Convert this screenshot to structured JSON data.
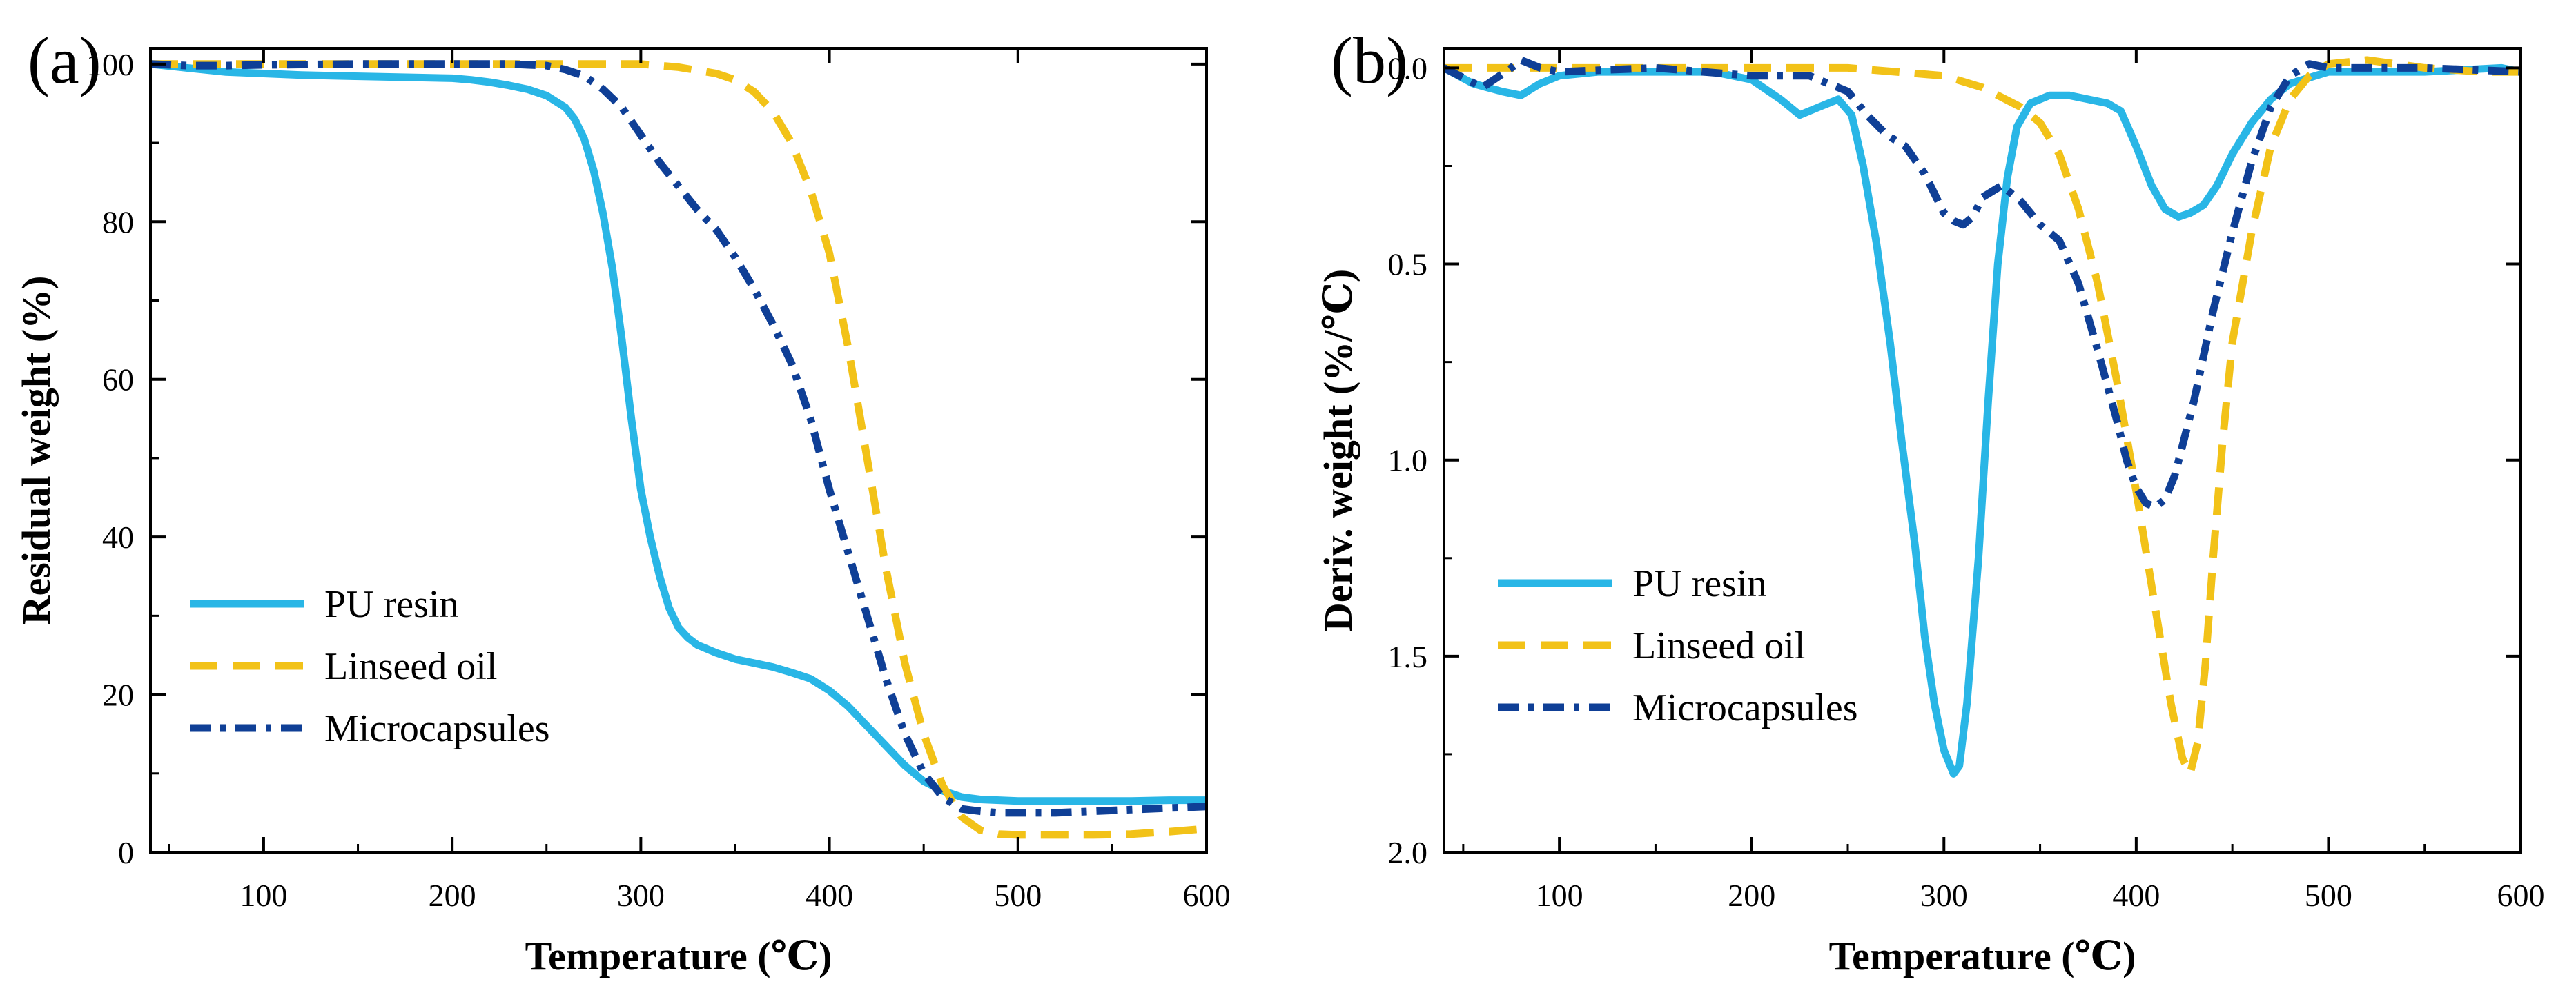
{
  "chart_data": [
    {
      "panel_label": "(a)",
      "type": "line",
      "title": "",
      "xlabel": "Temperature (℃)",
      "ylabel": "Residual weight (%)",
      "xlim": [
        40,
        600
      ],
      "ylim": [
        0,
        102
      ],
      "xticks": [
        100,
        200,
        300,
        400,
        500,
        600
      ],
      "yticks": [
        0,
        20,
        40,
        60,
        80,
        100
      ],
      "ytick_labels": [
        "0",
        "20",
        "40",
        "60",
        "80",
        "100"
      ],
      "legend_position": "bottom-left",
      "series": [
        {
          "name": "PU resin",
          "color": "#29b6e6",
          "dash": "solid",
          "x": [
            40,
            60,
            80,
            100,
            120,
            140,
            160,
            180,
            200,
            210,
            220,
            230,
            240,
            250,
            260,
            265,
            270,
            275,
            280,
            285,
            290,
            295,
            300,
            305,
            310,
            315,
            320,
            325,
            330,
            340,
            350,
            360,
            370,
            380,
            390,
            400,
            410,
            420,
            430,
            440,
            450,
            460,
            470,
            480,
            500,
            520,
            540,
            560,
            580,
            600
          ],
          "y": [
            100,
            99.5,
            99.0,
            98.8,
            98.6,
            98.5,
            98.4,
            98.3,
            98.2,
            98.0,
            97.7,
            97.3,
            96.8,
            96.0,
            94.5,
            93.0,
            90.5,
            86.5,
            81.0,
            74.0,
            65.0,
            55.0,
            46.0,
            40.0,
            35.0,
            31.0,
            28.5,
            27.2,
            26.3,
            25.3,
            24.5,
            24.0,
            23.5,
            22.8,
            22.0,
            20.5,
            18.5,
            16.0,
            13.5,
            11.0,
            9.0,
            7.8,
            7.0,
            6.7,
            6.5,
            6.5,
            6.5,
            6.5,
            6.6,
            6.6
          ]
        },
        {
          "name": "Linseed oil",
          "color": "#f2c218",
          "dash": "dashed",
          "x": [
            40,
            100,
            200,
            250,
            280,
            300,
            320,
            340,
            350,
            360,
            370,
            380,
            390,
            400,
            410,
            420,
            430,
            440,
            450,
            460,
            470,
            480,
            490,
            500,
            520,
            540,
            560,
            580,
            600
          ],
          "y": [
            100,
            100,
            100,
            100,
            100,
            100,
            99.6,
            98.8,
            98.0,
            96.5,
            94.0,
            90.0,
            84.0,
            76.0,
            64.0,
            50.0,
            36.0,
            24.0,
            15.0,
            8.5,
            4.5,
            2.8,
            2.3,
            2.2,
            2.2,
            2.2,
            2.3,
            2.6,
            3.0
          ]
        },
        {
          "name": "Microcapsules",
          "color": "#0f3f96",
          "dash": "dashdot",
          "x": [
            40,
            60,
            80,
            100,
            150,
            200,
            230,
            250,
            260,
            270,
            280,
            290,
            300,
            310,
            320,
            330,
            340,
            350,
            360,
            370,
            380,
            390,
            400,
            410,
            420,
            430,
            440,
            450,
            460,
            470,
            480,
            490,
            500,
            520,
            540,
            560,
            580,
            600
          ],
          "y": [
            100,
            99.8,
            99.8,
            99.9,
            100,
            100,
            100,
            99.8,
            99.3,
            98.5,
            96.8,
            94.5,
            91.0,
            87.5,
            84.5,
            81.5,
            79.0,
            75.5,
            71.5,
            67.0,
            62.0,
            55.0,
            46.0,
            38.0,
            30.0,
            22.0,
            15.0,
            10.0,
            7.0,
            5.5,
            5.2,
            5.0,
            5.0,
            5.0,
            5.2,
            5.4,
            5.6,
            5.8
          ]
        }
      ]
    },
    {
      "panel_label": "(b)",
      "type": "line",
      "title": "",
      "xlabel": "Temperature (℃)",
      "ylabel": "Deriv. weight (%/℃)",
      "xlim": [
        40,
        600
      ],
      "ylim": [
        2.0,
        -0.05
      ],
      "y_inverted": true,
      "xticks": [
        100,
        200,
        300,
        400,
        500,
        600
      ],
      "yticks": [
        0.0,
        0.5,
        1.0,
        1.5,
        2.0
      ],
      "ytick_labels": [
        "0.0",
        "0.5",
        "1.0",
        "1.5",
        "2.0"
      ],
      "legend_position": "bottom-left",
      "series": [
        {
          "name": "PU resin",
          "color": "#29b6e6",
          "dash": "solid",
          "x": [
            40,
            55,
            70,
            80,
            90,
            100,
            120,
            150,
            180,
            200,
            215,
            225,
            235,
            245,
            252,
            258,
            265,
            272,
            278,
            285,
            290,
            295,
            300,
            305,
            308,
            312,
            318,
            323,
            328,
            333,
            338,
            345,
            355,
            365,
            375,
            385,
            392,
            400,
            408,
            415,
            422,
            428,
            435,
            442,
            450,
            460,
            470,
            480,
            500,
            550,
            590,
            600
          ],
          "y": [
            0.0,
            0.04,
            0.06,
            0.07,
            0.04,
            0.02,
            0.01,
            0.01,
            0.01,
            0.03,
            0.08,
            0.12,
            0.1,
            0.08,
            0.12,
            0.25,
            0.45,
            0.7,
            0.95,
            1.22,
            1.45,
            1.62,
            1.74,
            1.8,
            1.78,
            1.62,
            1.25,
            0.85,
            0.5,
            0.28,
            0.15,
            0.09,
            0.07,
            0.07,
            0.08,
            0.09,
            0.11,
            0.2,
            0.3,
            0.36,
            0.38,
            0.37,
            0.35,
            0.3,
            0.22,
            0.14,
            0.08,
            0.04,
            0.01,
            0.01,
            0.0,
            0.01
          ]
        },
        {
          "name": "Linseed oil",
          "color": "#f2c218",
          "dash": "dashed",
          "x": [
            40,
            100,
            200,
            250,
            300,
            320,
            340,
            350,
            360,
            370,
            380,
            390,
            400,
            410,
            418,
            424,
            428,
            432,
            436,
            440,
            445,
            450,
            460,
            470,
            480,
            490,
            500,
            520,
            550,
            580,
            600
          ],
          "y": [
            0.0,
            0.0,
            0.0,
            0.0,
            0.02,
            0.05,
            0.1,
            0.14,
            0.22,
            0.36,
            0.55,
            0.8,
            1.08,
            1.38,
            1.62,
            1.76,
            1.8,
            1.72,
            1.52,
            1.25,
            0.95,
            0.7,
            0.42,
            0.2,
            0.08,
            0.02,
            -0.01,
            -0.02,
            0.0,
            0.01,
            0.01
          ]
        },
        {
          "name": "Microcapsules",
          "color": "#0f3f96",
          "dash": "dashdot",
          "x": [
            40,
            60,
            75,
            80,
            90,
            100,
            150,
            200,
            230,
            250,
            260,
            270,
            280,
            290,
            295,
            300,
            305,
            310,
            315,
            320,
            330,
            340,
            350,
            360,
            370,
            380,
            390,
            395,
            400,
            405,
            410,
            415,
            420,
            430,
            440,
            450,
            460,
            470,
            480,
            490,
            500,
            550,
            600
          ],
          "y": [
            0.0,
            0.05,
            0.0,
            -0.02,
            0.0,
            0.01,
            0.0,
            0.02,
            0.02,
            0.06,
            0.12,
            0.17,
            0.2,
            0.27,
            0.32,
            0.37,
            0.39,
            0.4,
            0.38,
            0.33,
            0.3,
            0.34,
            0.4,
            0.44,
            0.55,
            0.72,
            0.9,
            1.0,
            1.07,
            1.11,
            1.12,
            1.1,
            1.04,
            0.85,
            0.62,
            0.42,
            0.24,
            0.1,
            0.02,
            -0.01,
            0.0,
            0.0,
            0.01
          ]
        }
      ]
    }
  ]
}
